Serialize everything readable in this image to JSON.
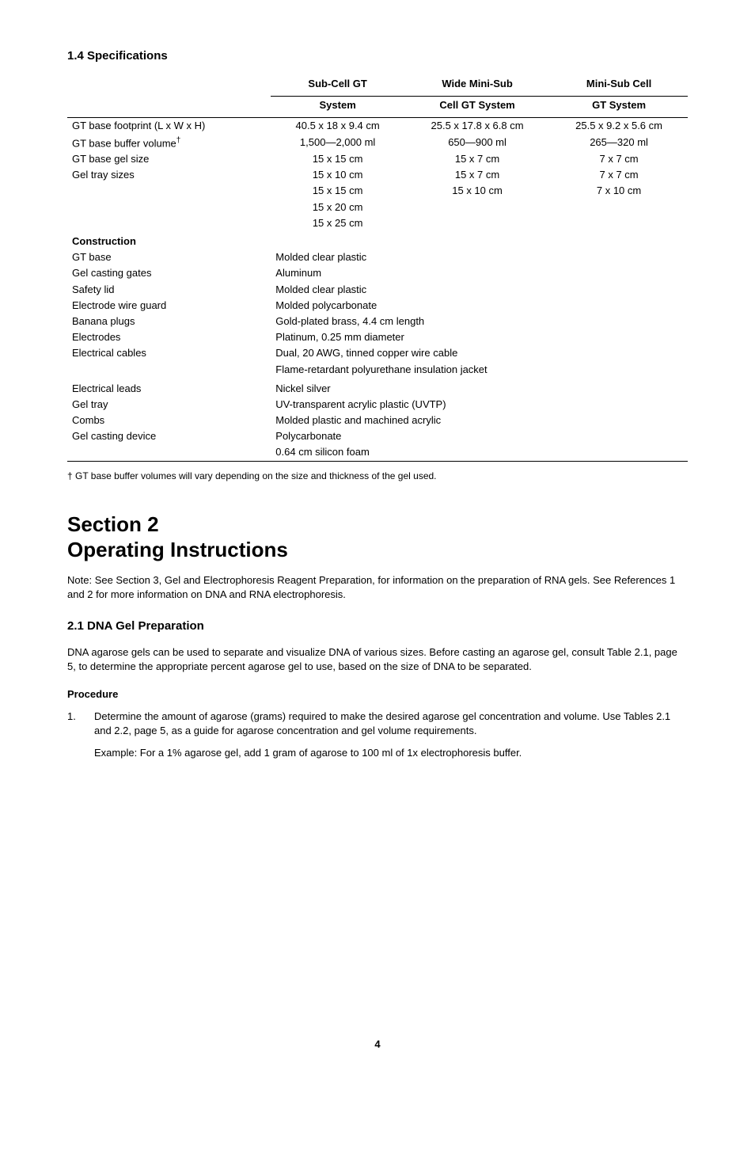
{
  "spec_heading": "1.4 Specifications",
  "columns": {
    "c1a": "Sub-Cell GT",
    "c1b": "System",
    "c2a": "Wide Mini-Sub",
    "c2b": "Cell GT System",
    "c3a": "Mini-Sub Cell",
    "c3b": "GT System"
  },
  "rows": [
    {
      "label": "GT base footprint (L x W x H)",
      "c1": "40.5 x 18 x 9.4 cm",
      "c2": "25.5 x 17.8 x 6.8 cm",
      "c3": "25.5 x 9.2 x 5.6 cm",
      "top": true
    },
    {
      "label": "GT base buffer volume†",
      "c1": "1,500—2,000 ml",
      "c2": "650—900 ml",
      "c3": "265—320 ml"
    },
    {
      "label": "GT base gel size",
      "c1": "15 x 15 cm",
      "c2": "15 x 7 cm",
      "c3": "7 x 7 cm"
    },
    {
      "label": "Gel tray sizes",
      "c1": "15 x 10 cm",
      "c2": "15 x 7 cm",
      "c3": "7 x 7 cm"
    },
    {
      "label": "",
      "c1": "15 x 15 cm",
      "c2": "15 x 10 cm",
      "c3": "7 x 10 cm"
    },
    {
      "label": "",
      "c1": "15 x 20 cm",
      "c2": "",
      "c3": ""
    },
    {
      "label": "",
      "c1": "15 x 25 cm",
      "c2": "",
      "c3": ""
    }
  ],
  "construction_label": "Construction",
  "construction": [
    {
      "label": "GT base",
      "val": "Molded clear plastic"
    },
    {
      "label": "Gel casting gates",
      "val": "Aluminum"
    },
    {
      "label": "Safety lid",
      "val": "Molded clear plastic"
    },
    {
      "label": "Electrode wire guard",
      "val": "Molded polycarbonate"
    },
    {
      "label": "Banana plugs",
      "val": "Gold-plated brass, 4.4 cm length"
    },
    {
      "label": "Electrodes",
      "val": "Platinum, 0.25 mm diameter"
    },
    {
      "label": "Electrical cables",
      "val": "Dual, 20 AWG, tinned copper wire cable"
    },
    {
      "label": "",
      "val": "Flame-retardant polyurethane insulation jacket"
    }
  ],
  "construction2": [
    {
      "label": "Electrical leads",
      "val": "Nickel silver"
    },
    {
      "label": "Gel tray",
      "val": "UV-transparent acrylic plastic (UVTP)"
    },
    {
      "label": "Combs",
      "val": "Molded plastic and machined acrylic"
    },
    {
      "label": "Gel casting device",
      "val": "Polycarbonate"
    },
    {
      "label": "",
      "val": "0.64 cm silicon foam"
    }
  ],
  "footnote": "†  GT base buffer volumes will vary depending on the size and thickness of the gel used.",
  "section2_a": "Section 2",
  "section2_b": "Operating Instructions",
  "note_label": "Note:",
  "note_text": " See Section 3, Gel and Electrophoresis Reagent Preparation, for information on the preparation of RNA gels. See References 1 and 2 for more information on DNA and RNA electrophoresis.",
  "sub21": "2.1 DNA Gel Preparation",
  "body21": "DNA agarose gels can be used to separate and visualize DNA of various sizes. Before casting an agarose gel, consult Table 2.1, page 5, to determine the appropriate percent agarose gel to use, based on the size of DNA to be separated.",
  "procedure_label": "Procedure",
  "step1_num": "1.",
  "step1_a": "Determine the amount of agarose (grams) required to make the desired agarose gel concentration and volume. Use Tables 2.1 and 2.2, page 5, as a guide for agarose concentration and gel volume requirements.",
  "step1_b": "Example: For a 1% agarose gel, add 1 gram of agarose to 100 ml of 1x electrophoresis buffer.",
  "page_number": "4"
}
